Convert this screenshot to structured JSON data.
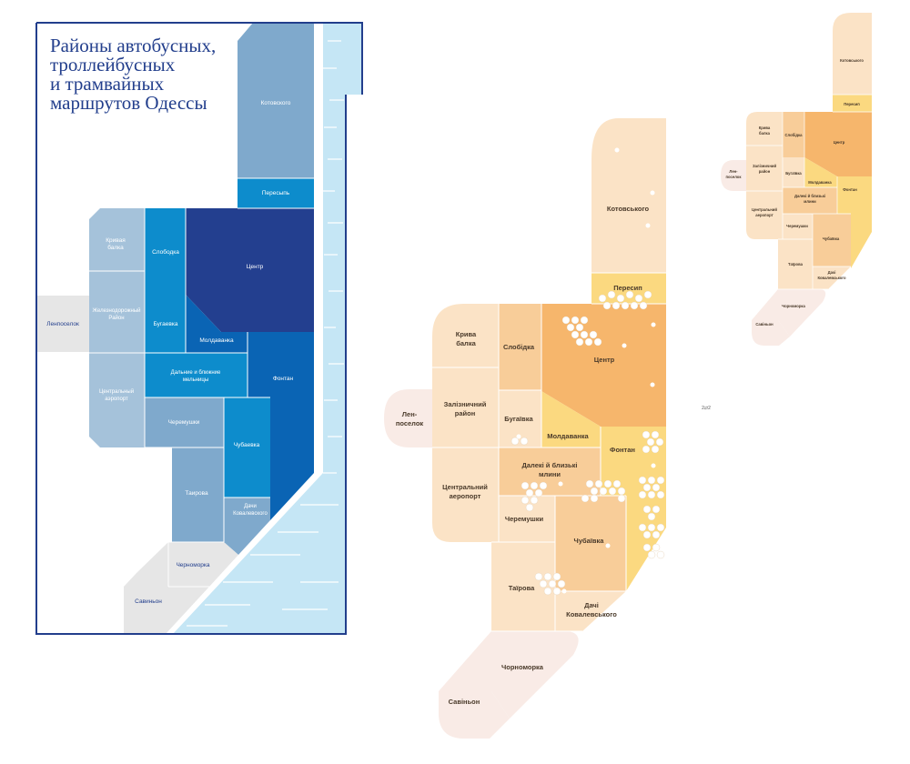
{
  "map1": {
    "title_lines": [
      "Районы автобусных,",
      "троллейбусных",
      "и трамвайных",
      "маршрутов Одессы"
    ],
    "districts": {
      "kotovskogo": "Котовского",
      "peresyp": "Пересыпь",
      "kryvaya_balka": [
        "Кривая",
        "балка"
      ],
      "slobodka": "Слободка",
      "centr": "Центр",
      "zheleznodorozhny": [
        "Железнодорожный",
        "Район"
      ],
      "bugaevka": "Бугаевка",
      "moldavanka": "Молдаванка",
      "lenposelok": "Ленпоселок",
      "melnitsy": [
        "Дальние и ближние",
        "мельницы"
      ],
      "fontan": "Фонтан",
      "aeroport": [
        "Центральный",
        "аэропорт"
      ],
      "cheremushki": "Черемушки",
      "chubaevka": "Чубаевка",
      "tairova": "Таирова",
      "kovalevskogo": [
        "Дачи",
        "Ковалевского"
      ],
      "chernomorka": "Черноморка",
      "savinyon": "Савиньон"
    }
  },
  "map2": {
    "districts": {
      "kotovskogo": "Котовського",
      "peresyp": "Пересип",
      "kryva_balka": [
        "Крива",
        "балка"
      ],
      "slobidka": "Слобідка",
      "centr": "Центр",
      "zaliznychny": [
        "Залізничний",
        "район"
      ],
      "lenposelok": [
        "Лен-",
        "поселок"
      ],
      "bugaivka": "Бугаївка",
      "moldavanka": "Молдаванка",
      "fontan": "Фонтан",
      "mlyny": [
        "Далекі й близькі",
        "млини"
      ],
      "aeroport": [
        "Центральний",
        "аеропорт"
      ],
      "cheremushki": "Черемушки",
      "chubaivka": "Чубаївка",
      "tairova": "Таїрова",
      "kovalevskogo": [
        "Дачі",
        "Ковалевського"
      ],
      "chornomorka": "Чорноморка",
      "savinyon": "Савіньон"
    },
    "route_glyph": "2⇄2"
  },
  "map3": {
    "districts": {
      "kotovskogo": "Котовського",
      "peresyp": "Пересип",
      "kryva_balka": [
        "Крива",
        "балка"
      ],
      "slobidka": "Слобідка",
      "centr": "Центр",
      "zaliznychny": [
        "Залізничний",
        "район"
      ],
      "lenposelok": [
        "Лен-",
        "поселок"
      ],
      "bugaivka": "Бугаївка",
      "moldavanka": "Молдаванка",
      "mlyny": [
        "Далекі й близькі",
        "млини"
      ],
      "fontan": "Фонтан",
      "aeroport": [
        "Центральний",
        "аеропорт"
      ],
      "cheremushki": "Черемушки",
      "chubaivka": "Чубаївка",
      "tairova": "Таїрова",
      "kovalevskogo": [
        "Дачі",
        "Ковалевського"
      ],
      "chornomorka": "Чорноморка",
      "savinyon": "Савіньон"
    }
  },
  "colors": {
    "frame": "#223e8c",
    "sea": "#c5e6f5",
    "darkest_blue": "#233f8f",
    "dark_blue": "#0a64b4",
    "mid_blue": "#0d8ccc",
    "light_blue": "#7fa9cc",
    "pale_blue": "#a5c2da",
    "gray": "#e6e6e6",
    "cream": "#fbe3c6",
    "light_orange": "#f8cd99",
    "orange": "#f6b66c",
    "yellow": "#fbd980",
    "pink": "#f9ebe6"
  }
}
